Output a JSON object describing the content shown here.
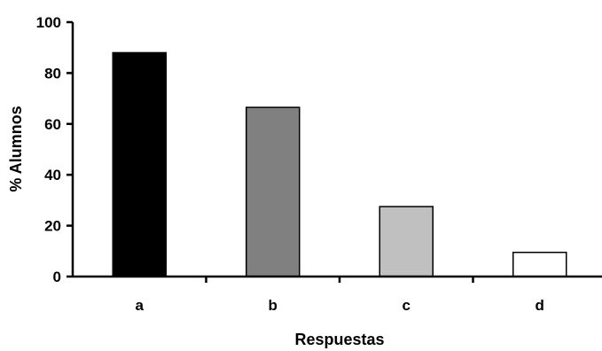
{
  "chart_data": {
    "type": "bar",
    "categories": [
      "a",
      "b",
      "c",
      "d"
    ],
    "values": [
      88,
      66.5,
      27.5,
      9.5
    ],
    "bar_colors": [
      "#000000",
      "#808080",
      "#c0c0c0",
      "#ffffff"
    ],
    "xlabel": "Respuestas",
    "ylabel": "% Alumnos",
    "ylim": [
      0,
      100
    ],
    "yticks": [
      0,
      20,
      40,
      60,
      80,
      100
    ],
    "grid": false,
    "legend": "none"
  }
}
